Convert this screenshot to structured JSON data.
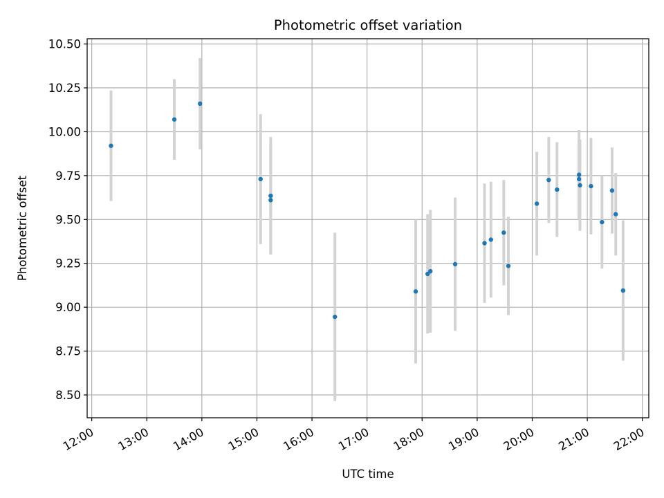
{
  "chart_data": {
    "type": "scatter",
    "title": "Photometric offset variation",
    "xlabel": "UTC time",
    "ylabel": "Photometric offset",
    "x_axis": "time",
    "xlim": [
      "11:55",
      "22:07"
    ],
    "ylim": [
      8.37,
      10.53
    ],
    "xticks": [
      "12:00",
      "13:00",
      "14:00",
      "15:00",
      "16:00",
      "17:00",
      "18:00",
      "19:00",
      "20:00",
      "21:00",
      "22:00"
    ],
    "yticks": [
      "8.50",
      "8.75",
      "9.00",
      "9.25",
      "9.50",
      "9.75",
      "10.00",
      "10.25",
      "10.50"
    ],
    "grid": true,
    "colors": {
      "marker": "#1f77b4",
      "errorbar": "#d3d3d3",
      "grid": "#b0b0b0"
    },
    "points": [
      {
        "x": "12:21",
        "y": 9.92,
        "err": 0.315
      },
      {
        "x": "13:30",
        "y": 10.07,
        "err": 0.23
      },
      {
        "x": "13:58",
        "y": 10.16,
        "err": 0.26
      },
      {
        "x": "15:04",
        "y": 9.73,
        "err": 0.37
      },
      {
        "x": "15:15",
        "y": 9.635,
        "err": 0.335
      },
      {
        "x": "15:15",
        "y": 9.61,
        "err": 0.31
      },
      {
        "x": "16:25",
        "y": 8.945,
        "err": 0.48
      },
      {
        "x": "17:53",
        "y": 9.09,
        "err": 0.41
      },
      {
        "x": "18:06",
        "y": 9.19,
        "err": 0.34
      },
      {
        "x": "18:09",
        "y": 9.205,
        "err": 0.35
      },
      {
        "x": "18:36",
        "y": 9.245,
        "err": 0.38
      },
      {
        "x": "19:08",
        "y": 9.365,
        "err": 0.34
      },
      {
        "x": "19:15",
        "y": 9.385,
        "err": 0.33
      },
      {
        "x": "19:29",
        "y": 9.425,
        "err": 0.3
      },
      {
        "x": "19:34",
        "y": 9.235,
        "err": 0.28
      },
      {
        "x": "20:05",
        "y": 9.59,
        "err": 0.295
      },
      {
        "x": "20:18",
        "y": 9.725,
        "err": 0.245
      },
      {
        "x": "20:27",
        "y": 9.67,
        "err": 0.27
      },
      {
        "x": "20:51",
        "y": 9.755,
        "err": 0.255
      },
      {
        "x": "20:51",
        "y": 9.73,
        "err": 0.225
      },
      {
        "x": "20:52",
        "y": 9.695,
        "err": 0.26
      },
      {
        "x": "21:04",
        "y": 9.69,
        "err": 0.275
      },
      {
        "x": "21:16",
        "y": 9.485,
        "err": 0.265
      },
      {
        "x": "21:27",
        "y": 9.665,
        "err": 0.245
      },
      {
        "x": "21:31",
        "y": 9.53,
        "err": 0.235
      },
      {
        "x": "21:39",
        "y": 9.095,
        "err": 0.4
      }
    ]
  }
}
